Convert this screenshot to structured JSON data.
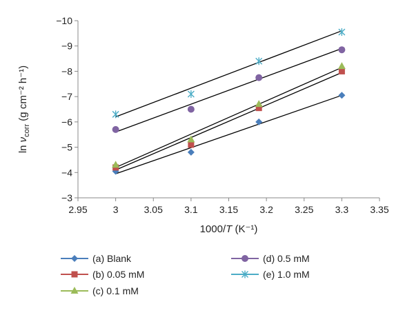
{
  "chart_data": {
    "type": "scatter",
    "xlabel": "1000/T (K⁻¹)",
    "ylabel": "ln ν_corr (g cm⁻² h⁻¹)",
    "xlim": [
      2.95,
      3.35
    ],
    "ylim": [
      -3,
      -10
    ],
    "y_axis_inverted": true,
    "x_ticks": [
      2.95,
      3,
      3.05,
      3.1,
      3.15,
      3.2,
      3.25,
      3.3,
      3.35
    ],
    "x_tick_labels": [
      "2.95",
      "3",
      "3.05",
      "3.1",
      "3.15",
      "3.2",
      "3.25",
      "3.3",
      "3.35"
    ],
    "y_ticks": [
      -3,
      -4,
      -5,
      -6,
      -7,
      -8,
      -9,
      -10
    ],
    "y_tick_labels": [
      "−3",
      "−4",
      "−5",
      "−6",
      "−7",
      "−8",
      "−9",
      "−10"
    ],
    "grid": false,
    "legend_position": "bottom",
    "x": [
      3.0,
      3.1,
      3.19,
      3.3
    ],
    "series": [
      {
        "name": "(a) Blank",
        "marker": "diamond",
        "color": "#4a7ebb",
        "values": [
          -4.05,
          -4.8,
          -6.0,
          -7.05
        ],
        "fit": [
          -3.95,
          -7.05
        ]
      },
      {
        "name": "(b) 0.05 mM",
        "marker": "square",
        "color": "#c0504d",
        "values": [
          -4.2,
          -5.1,
          -6.55,
          -8.0
        ],
        "fit": [
          -4.1,
          -7.95
        ]
      },
      {
        "name": "(c) 0.1 mM",
        "marker": "triangle",
        "color": "#9bbb59",
        "values": [
          -4.3,
          -5.3,
          -6.7,
          -8.2
        ],
        "fit": [
          -4.2,
          -8.15
        ]
      },
      {
        "name": "(d) 0.5 mM",
        "marker": "circle",
        "color": "#8064a2",
        "values": [
          -5.7,
          -6.5,
          -7.75,
          -8.85
        ],
        "fit": [
          -5.6,
          -8.9
        ]
      },
      {
        "name": "(e) 1.0 mM",
        "marker": "star",
        "color": "#4bacc6",
        "values": [
          -6.3,
          -7.1,
          -8.4,
          -9.55
        ],
        "fit": [
          -6.2,
          -9.6
        ]
      }
    ]
  }
}
